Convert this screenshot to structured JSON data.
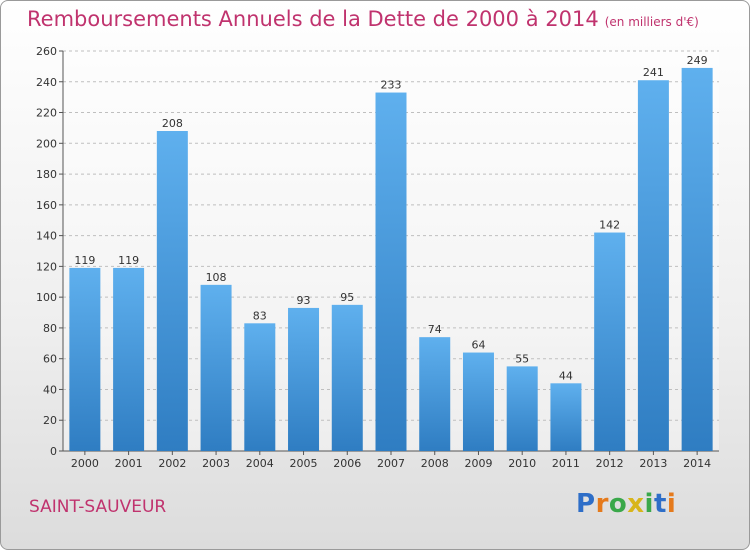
{
  "page": {
    "title": "Remboursements Annuels de la Dette de 2000 à 2014",
    "title_unit": "(en milliers d'€)",
    "commune": "SAINT-SAUVEUR",
    "logo_letters": [
      "P",
      "r",
      "o",
      "x",
      "i",
      "t",
      "i"
    ],
    "logo_colors": [
      "#2e6ec8",
      "#e57a1c",
      "#3aa84a",
      "#d8b51a",
      "#3aa84a",
      "#2e6ec8",
      "#e57a1c"
    ]
  },
  "chart_data": {
    "type": "bar",
    "title": "Remboursements Annuels de la Dette de 2000 à 2014",
    "subtitle": "(en milliers d'€)",
    "xlabel": "",
    "ylabel": "",
    "categories": [
      "2000",
      "2001",
      "2002",
      "2003",
      "2004",
      "2005",
      "2006",
      "2007",
      "2008",
      "2009",
      "2010",
      "2011",
      "2012",
      "2013",
      "2014"
    ],
    "values": [
      119,
      119,
      208,
      108,
      83,
      93,
      95,
      233,
      74,
      64,
      55,
      44,
      142,
      241,
      249
    ],
    "value_labels": [
      "119",
      "119",
      "208",
      "108",
      "83",
      "93",
      "95",
      "233",
      "74",
      "64",
      "55",
      "44",
      "142",
      "241",
      "249"
    ],
    "ylim": [
      0,
      260
    ],
    "yticks": [
      0,
      20,
      40,
      60,
      80,
      100,
      120,
      140,
      160,
      180,
      200,
      220,
      240,
      260
    ],
    "ytick_labels": [
      "0",
      "20",
      "40",
      "60",
      "80",
      "100",
      "120",
      "140",
      "160",
      "180",
      "200",
      "220",
      "240",
      "260"
    ],
    "grid": true,
    "bar_color": "#4a9fe0"
  }
}
